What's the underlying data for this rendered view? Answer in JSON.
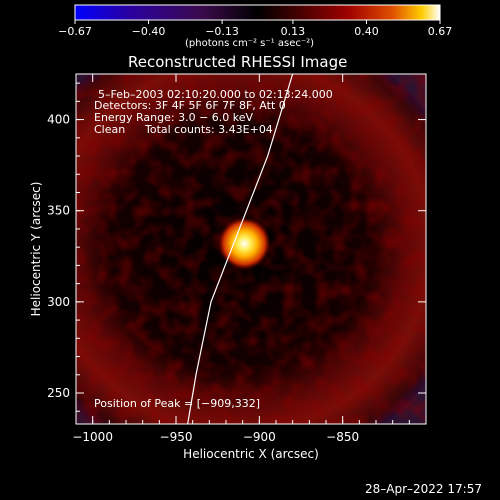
{
  "chart_data": {
    "type": "heatmap",
    "title": "Reconstructed RHESSI Image",
    "xlabel": "Heliocentric X (arcsec)",
    "ylabel": "Heliocentric Y (arcsec)",
    "xlim": [
      -1010,
      -800
    ],
    "ylim": [
      233,
      425
    ],
    "x_ticks": [
      -1000,
      -950,
      -900,
      -850
    ],
    "x_tick_labels": [
      "−1000",
      "−950",
      "−900",
      "−850"
    ],
    "y_ticks": [
      250,
      300,
      350,
      400
    ],
    "y_tick_labels": [
      "250",
      "300",
      "350",
      "400"
    ],
    "colorbar": {
      "min": -0.67,
      "max": 0.67,
      "ticks": [
        -0.67,
        -0.4,
        -0.13,
        0.13,
        0.4,
        0.67
      ],
      "tick_labels": [
        "−0.67",
        "−0.40",
        "−0.13",
        "0.13",
        "0.40",
        "0.67"
      ],
      "unit_label": "(photons cm⁻² s⁻¹ asec⁻²)"
    },
    "annotations": {
      "time_range": "5–Feb–2003 02:10:20.000 to 02:13:24.000",
      "detectors": "Detectors: 3F 4F 5F 6F 7F 8F, Att 0",
      "energy": "Energy Range: 3.0 − 6.0 keV",
      "clean": "Clean",
      "total_counts": "Total counts: 3.43E+04",
      "peak_position": "Position of Peak = [−909,332]"
    },
    "peak": {
      "x": -909,
      "y": 332,
      "value": 0.67
    },
    "ring": {
      "center_x": -912,
      "center_y": 330,
      "radius": 52,
      "value": 0.22
    },
    "limb": [
      {
        "x": -943,
        "y": 233
      },
      {
        "x": -938,
        "y": 260
      },
      {
        "x": -929,
        "y": 300
      },
      {
        "x": -912,
        "y": 340
      },
      {
        "x": -895,
        "y": 380
      },
      {
        "x": -880,
        "y": 425
      }
    ],
    "colors": {
      "background": "#000000",
      "colormap": [
        "#0000ff",
        "#2a00a0",
        "#3a0a4a",
        "#000000",
        "#4a0000",
        "#a00000",
        "#e05000",
        "#ffcc00",
        "#ffffff"
      ]
    }
  },
  "footer": {
    "date": "28–Apr–2022 17:57"
  }
}
